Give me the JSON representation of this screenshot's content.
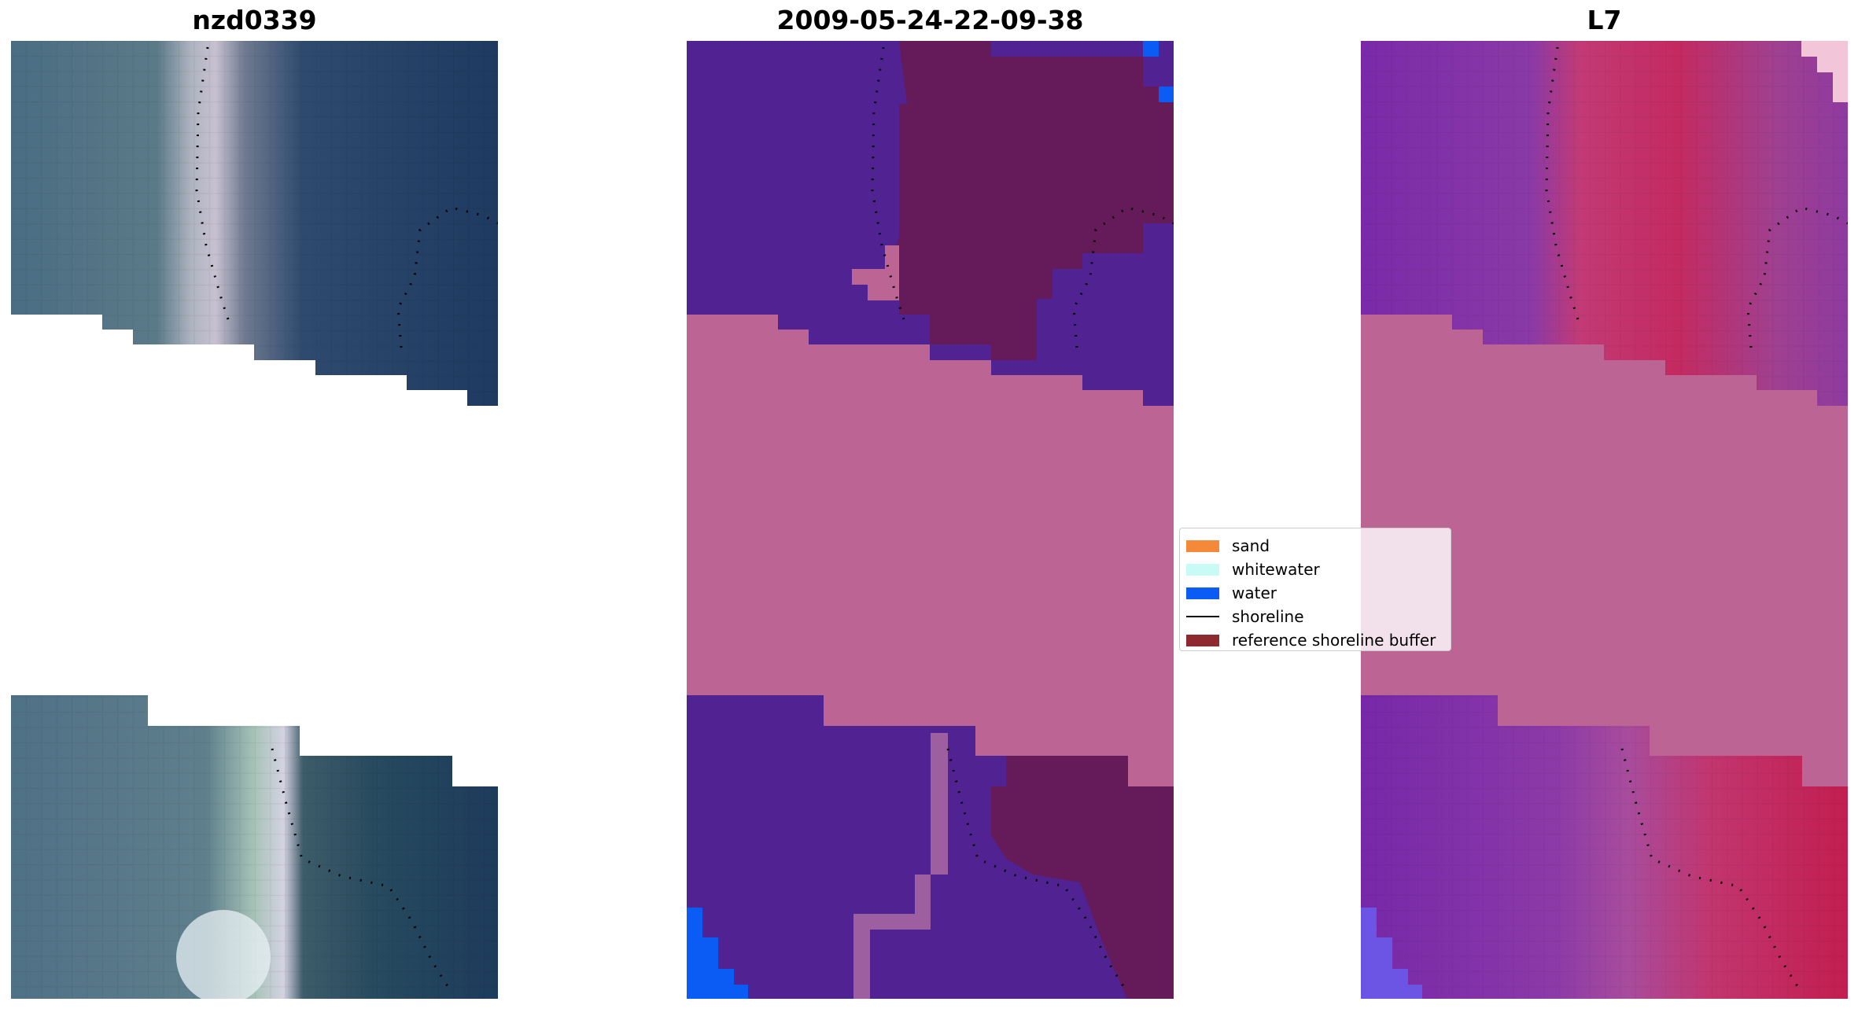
{
  "panels": [
    {
      "title": "nzd0339",
      "view": "rgb-image"
    },
    {
      "title": "2009-05-24-22-09-38",
      "view": "classification"
    },
    {
      "title": "L7",
      "view": "water-index"
    }
  ],
  "legend": {
    "items": [
      {
        "label": "sand",
        "color": "#f5893a",
        "kind": "patch"
      },
      {
        "label": "whitewater",
        "color": "#c8fbf6",
        "kind": "patch"
      },
      {
        "label": "water",
        "color": "#0a5cf4",
        "kind": "patch"
      },
      {
        "label": "shoreline",
        "color": "#000000",
        "kind": "line"
      },
      {
        "label": "reference shoreline buffer",
        "color": "#8c2a30",
        "kind": "patch"
      }
    ]
  },
  "colors": {
    "nodata_mask": "#bc6594",
    "class_other": "#512291",
    "buffer_overlay": "#651b5a",
    "water": "#0a5cf4",
    "rgb_land": "#4a6a80",
    "rgb_water": "#1e3b60",
    "rgb_beach": "#d8c8d8",
    "index_low": "#7a2aa8",
    "index_high": "#c41e55"
  }
}
